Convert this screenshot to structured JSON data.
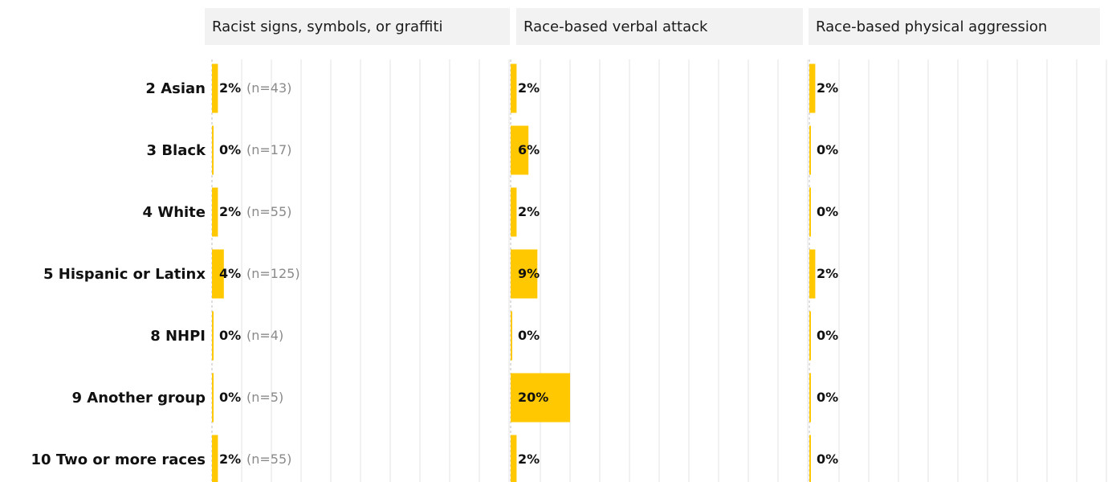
{
  "chart_data": {
    "type": "bar",
    "orientation": "horizontal",
    "categories": [
      "2 Asian",
      "3 Black",
      "4 White",
      "5 Hispanic or Latinx",
      "8 NHPI",
      "9 Another group",
      "10 Two or more races"
    ],
    "n_labels": [
      "(n=43)",
      "(n=17)",
      "(n=55)",
      "(n=125)",
      "(n=4)",
      "(n=5)",
      "(n=55)"
    ],
    "facets": [
      {
        "name": "Racist signs, symbols, or graffiti",
        "values": [
          2,
          0,
          2,
          4,
          0,
          0,
          2
        ],
        "labels": [
          "2%",
          "0%",
          "2%",
          "4%",
          "0%",
          "0%",
          "2%"
        ]
      },
      {
        "name": "Race-based verbal attack",
        "values": [
          2,
          6,
          2,
          9,
          0,
          20,
          2
        ],
        "labels": [
          "2%",
          "6%",
          "2%",
          "9%",
          "0%",
          "20%",
          "2%"
        ]
      },
      {
        "name": "Race-based physical aggression",
        "values": [
          2,
          0,
          0,
          2,
          0,
          0,
          0
        ],
        "labels": [
          "2%",
          "0%",
          "0%",
          "2%",
          "0%",
          "0%",
          "0%"
        ]
      }
    ],
    "xlim": [
      0,
      100
    ],
    "unit": "%",
    "grid": true,
    "colors": {
      "bar": "#ffc800"
    }
  }
}
